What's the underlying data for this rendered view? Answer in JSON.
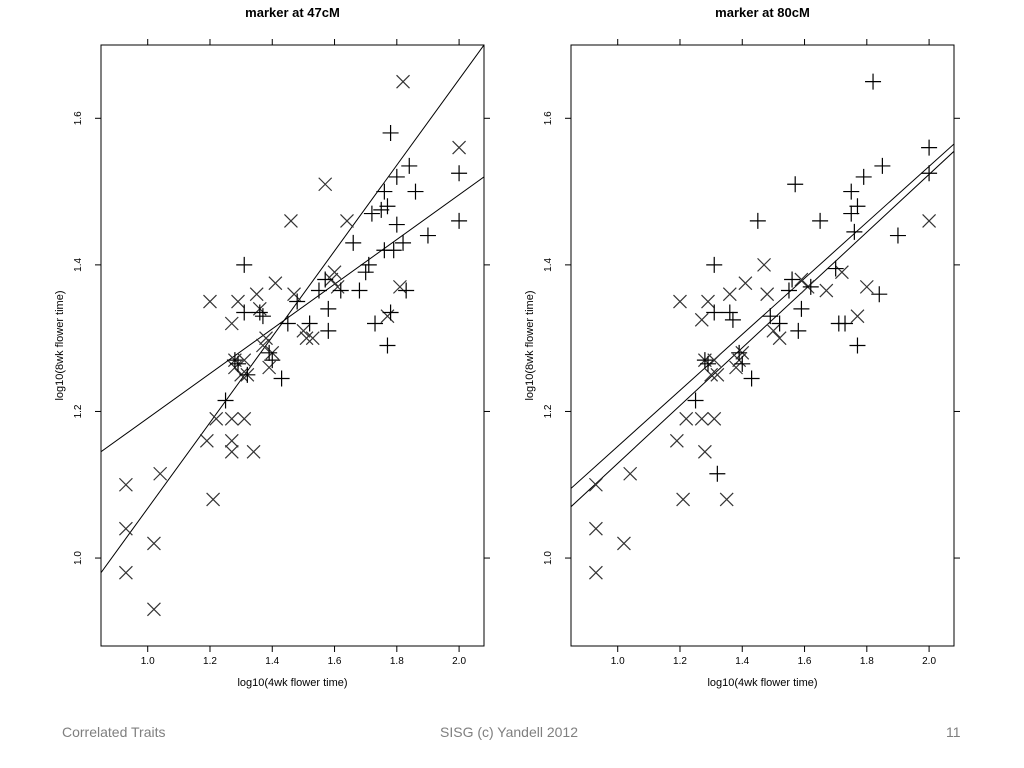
{
  "footer": {
    "left": "Correlated Traits",
    "center": "SISG (c) Yandell 2012",
    "right": "11"
  },
  "chart_data": [
    {
      "type": "scatter",
      "title": "marker at 47cM",
      "xlabel": "log10(4wk flower time)",
      "ylabel": "log10(8wk flower time)",
      "xlim": [
        0.85,
        2.08
      ],
      "ylim": [
        0.88,
        1.7
      ],
      "xticks": [
        "1.0",
        "1.2",
        "1.4",
        "1.6",
        "1.8",
        "2.0"
      ],
      "yticks": [
        "1.0",
        "1.2",
        "1.4",
        "1.6"
      ],
      "grid": false,
      "series": [
        {
          "marker": "x",
          "points": [
            [
              0.93,
              1.1
            ],
            [
              0.93,
              1.04
            ],
            [
              0.93,
              0.98
            ],
            [
              1.02,
              1.02
            ],
            [
              1.02,
              0.93
            ],
            [
              1.04,
              1.115
            ],
            [
              1.19,
              1.16
            ],
            [
              1.2,
              1.35
            ],
            [
              1.21,
              1.08
            ],
            [
              1.22,
              1.19
            ],
            [
              1.27,
              1.16
            ],
            [
              1.27,
              1.145
            ],
            [
              1.27,
              1.19
            ],
            [
              1.27,
              1.32
            ],
            [
              1.28,
              1.27
            ],
            [
              1.28,
              1.26
            ],
            [
              1.29,
              1.35
            ],
            [
              1.3,
              1.25
            ],
            [
              1.31,
              1.19
            ],
            [
              1.31,
              1.27
            ],
            [
              1.32,
              1.25
            ],
            [
              1.34,
              1.145
            ],
            [
              1.35,
              1.36
            ],
            [
              1.36,
              1.34
            ],
            [
              1.37,
              1.29
            ],
            [
              1.38,
              1.3
            ],
            [
              1.39,
              1.26
            ],
            [
              1.4,
              1.28
            ],
            [
              1.41,
              1.375
            ],
            [
              1.46,
              1.46
            ],
            [
              1.47,
              1.36
            ],
            [
              1.5,
              1.31
            ],
            [
              1.51,
              1.3
            ],
            [
              1.53,
              1.3
            ],
            [
              1.57,
              1.51
            ],
            [
              1.59,
              1.38
            ],
            [
              1.6,
              1.39
            ],
            [
              1.61,
              1.37
            ],
            [
              1.64,
              1.46
            ],
            [
              1.77,
              1.33
            ],
            [
              1.81,
              1.37
            ],
            [
              1.82,
              1.65
            ],
            [
              2.0,
              1.56
            ]
          ]
        },
        {
          "marker": "+",
          "points": [
            [
              1.25,
              1.215
            ],
            [
              1.28,
              1.27
            ],
            [
              1.29,
              1.265
            ],
            [
              1.31,
              1.335
            ],
            [
              1.31,
              1.4
            ],
            [
              1.32,
              1.25
            ],
            [
              1.36,
              1.335
            ],
            [
              1.37,
              1.33
            ],
            [
              1.39,
              1.28
            ],
            [
              1.4,
              1.27
            ],
            [
              1.43,
              1.245
            ],
            [
              1.45,
              1.32
            ],
            [
              1.48,
              1.35
            ],
            [
              1.52,
              1.32
            ],
            [
              1.55,
              1.365
            ],
            [
              1.57,
              1.38
            ],
            [
              1.58,
              1.31
            ],
            [
              1.58,
              1.34
            ],
            [
              1.62,
              1.365
            ],
            [
              1.66,
              1.43
            ],
            [
              1.68,
              1.365
            ],
            [
              1.7,
              1.39
            ],
            [
              1.71,
              1.4
            ],
            [
              1.72,
              1.47
            ],
            [
              1.73,
              1.32
            ],
            [
              1.75,
              1.475
            ],
            [
              1.76,
              1.42
            ],
            [
              1.76,
              1.5
            ],
            [
              1.77,
              1.29
            ],
            [
              1.77,
              1.48
            ],
            [
              1.78,
              1.335
            ],
            [
              1.78,
              1.58
            ],
            [
              1.79,
              1.42
            ],
            [
              1.8,
              1.52
            ],
            [
              1.8,
              1.455
            ],
            [
              1.82,
              1.43
            ],
            [
              1.83,
              1.365
            ],
            [
              1.84,
              1.535
            ],
            [
              1.86,
              1.5
            ],
            [
              1.9,
              1.44
            ],
            [
              2.0,
              1.525
            ],
            [
              2.0,
              1.46
            ]
          ]
        }
      ],
      "lines": [
        {
          "x": [
            0.85,
            2.08
          ],
          "y": [
            1.145,
            1.52
          ]
        },
        {
          "x": [
            0.85,
            2.08
          ],
          "y": [
            0.98,
            1.7
          ]
        }
      ]
    },
    {
      "type": "scatter",
      "title": "marker at 80cM",
      "xlabel": "log10(4wk flower time)",
      "ylabel": "log10(8wk flower time)",
      "xlim": [
        0.85,
        2.08
      ],
      "ylim": [
        0.88,
        1.7
      ],
      "xticks": [
        "1.0",
        "1.2",
        "1.4",
        "1.6",
        "1.8",
        "2.0"
      ],
      "yticks": [
        "1.0",
        "1.2",
        "1.4",
        "1.6"
      ],
      "grid": false,
      "series": [
        {
          "marker": "x",
          "points": [
            [
              0.93,
              1.1
            ],
            [
              0.93,
              1.04
            ],
            [
              0.93,
              0.98
            ],
            [
              1.02,
              1.02
            ],
            [
              1.04,
              1.115
            ],
            [
              1.19,
              1.16
            ],
            [
              1.2,
              1.35
            ],
            [
              1.21,
              1.08
            ],
            [
              1.22,
              1.19
            ],
            [
              1.27,
              1.19
            ],
            [
              1.27,
              1.325
            ],
            [
              1.28,
              1.145
            ],
            [
              1.28,
              1.27
            ],
            [
              1.29,
              1.35
            ],
            [
              1.3,
              1.25
            ],
            [
              1.31,
              1.19
            ],
            [
              1.31,
              1.27
            ],
            [
              1.32,
              1.25
            ],
            [
              1.35,
              1.08
            ],
            [
              1.36,
              1.36
            ],
            [
              1.38,
              1.26
            ],
            [
              1.39,
              1.27
            ],
            [
              1.4,
              1.28
            ],
            [
              1.41,
              1.375
            ],
            [
              1.47,
              1.4
            ],
            [
              1.48,
              1.36
            ],
            [
              1.5,
              1.31
            ],
            [
              1.52,
              1.3
            ],
            [
              1.59,
              1.38
            ],
            [
              1.61,
              1.37
            ],
            [
              1.67,
              1.365
            ],
            [
              1.72,
              1.39
            ],
            [
              1.77,
              1.33
            ],
            [
              1.8,
              1.37
            ],
            [
              2.0,
              1.46
            ]
          ]
        },
        {
          "marker": "+",
          "points": [
            [
              1.25,
              1.215
            ],
            [
              1.28,
              1.27
            ],
            [
              1.29,
              1.265
            ],
            [
              1.31,
              1.335
            ],
            [
              1.31,
              1.4
            ],
            [
              1.32,
              1.115
            ],
            [
              1.36,
              1.335
            ],
            [
              1.37,
              1.325
            ],
            [
              1.39,
              1.28
            ],
            [
              1.4,
              1.265
            ],
            [
              1.43,
              1.245
            ],
            [
              1.45,
              1.46
            ],
            [
              1.49,
              1.33
            ],
            [
              1.52,
              1.32
            ],
            [
              1.55,
              1.365
            ],
            [
              1.56,
              1.38
            ],
            [
              1.57,
              1.51
            ],
            [
              1.58,
              1.31
            ],
            [
              1.59,
              1.34
            ],
            [
              1.62,
              1.37
            ],
            [
              1.65,
              1.46
            ],
            [
              1.7,
              1.395
            ],
            [
              1.71,
              1.32
            ],
            [
              1.73,
              1.32
            ],
            [
              1.75,
              1.47
            ],
            [
              1.75,
              1.5
            ],
            [
              1.76,
              1.445
            ],
            [
              1.77,
              1.48
            ],
            [
              1.77,
              1.29
            ],
            [
              1.79,
              1.52
            ],
            [
              1.82,
              1.65
            ],
            [
              1.84,
              1.36
            ],
            [
              1.85,
              1.535
            ],
            [
              1.9,
              1.44
            ],
            [
              2.0,
              1.56
            ],
            [
              2.0,
              1.525
            ]
          ]
        }
      ],
      "lines": [
        {
          "x": [
            0.85,
            2.08
          ],
          "y": [
            1.095,
            1.565
          ]
        },
        {
          "x": [
            0.85,
            2.08
          ],
          "y": [
            1.07,
            1.555
          ]
        }
      ]
    }
  ]
}
